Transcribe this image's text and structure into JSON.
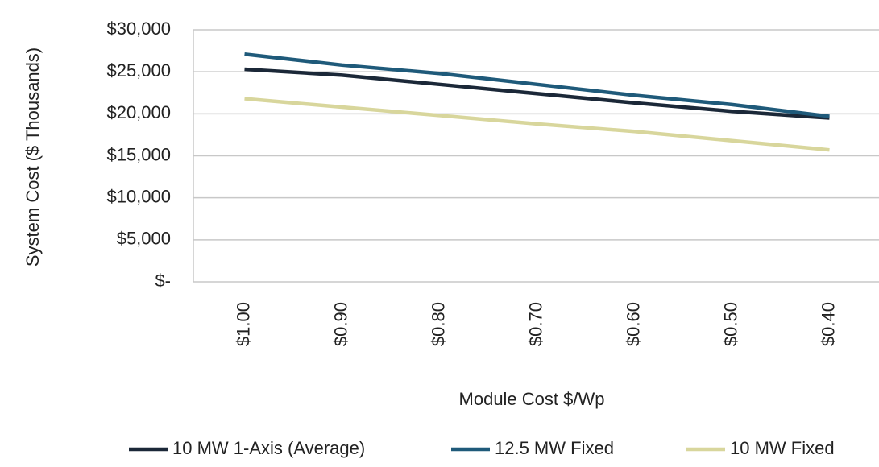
{
  "chart_data": {
    "type": "line",
    "x_label": "Module Cost $/Wp",
    "y_label": "System Cost ($ Thousands)",
    "categories": [
      "$1.00",
      "$0.90",
      "$0.80",
      "$0.70",
      "$0.60",
      "$0.50",
      "$0.40"
    ],
    "series": [
      {
        "name": "10 MW 1-Axis (Average)",
        "color": "#1b2838",
        "values": [
          25300,
          24600,
          23500,
          22400,
          21300,
          20300,
          19500
        ]
      },
      {
        "name": "12.5 MW Fixed",
        "color": "#1f5a7a",
        "values": [
          27100,
          25800,
          24800,
          23500,
          22200,
          21100,
          19700
        ]
      },
      {
        "name": "10 MW Fixed",
        "color": "#d8d69c",
        "values": [
          21800,
          20800,
          19800,
          18800,
          17900,
          16800,
          15700
        ]
      }
    ],
    "ylim": [
      0,
      30000
    ],
    "yticks": [
      {
        "value": 0,
        "label": "$-"
      },
      {
        "value": 5000,
        "label": "$5,000"
      },
      {
        "value": 10000,
        "label": "$10,000"
      },
      {
        "value": 15000,
        "label": "$15,000"
      },
      {
        "value": 20000,
        "label": "$20,000"
      },
      {
        "value": 25000,
        "label": "$25,000"
      },
      {
        "value": 30000,
        "label": "$30,000"
      }
    ],
    "grid": true,
    "legend": "bottom"
  }
}
